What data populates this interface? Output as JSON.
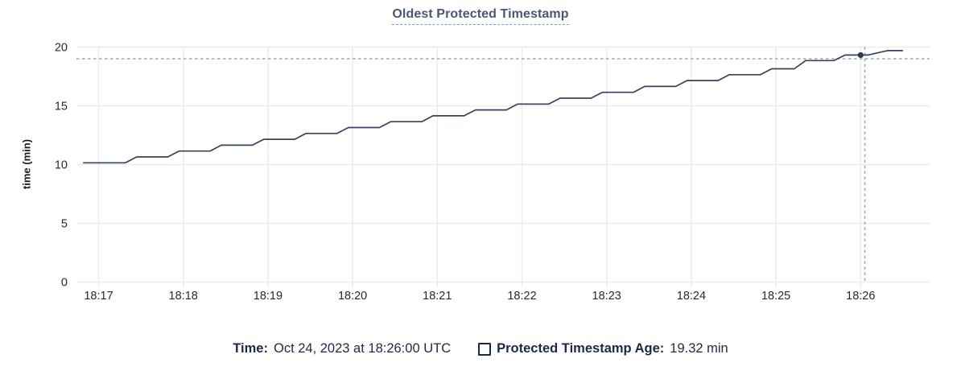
{
  "title": "Oldest Protected Timestamp",
  "y_axis_label": "time (min)",
  "footer": {
    "time_label": "Time:",
    "time_value": "Oct 24, 2023 at 18:26:00 UTC",
    "series_label": "Protected Timestamp Age:",
    "series_value": "19.32 min"
  },
  "colors": {
    "title": "#475872",
    "line": "#36425b",
    "hover_dot": "#2c3a52",
    "crosshair": "#9bb0b7",
    "gridline": "#ededee",
    "axis_text": "#242a35",
    "legend_text": "#1b2b45"
  },
  "chart_data": {
    "type": "line",
    "title": "Oldest Protected Timestamp",
    "xlabel": "",
    "ylabel": "time (min)",
    "ylim": [
      0,
      20
    ],
    "y_ticks": [
      0,
      5,
      10,
      15,
      20
    ],
    "grid": true,
    "legend_position": "bottom",
    "x_note": "x values are seconds since 18:17:00",
    "x_ticks": [
      {
        "offset_s": 0,
        "label": "18:17"
      },
      {
        "offset_s": 60,
        "label": "18:18"
      },
      {
        "offset_s": 120,
        "label": "18:19"
      },
      {
        "offset_s": 180,
        "label": "18:20"
      },
      {
        "offset_s": 240,
        "label": "18:21"
      },
      {
        "offset_s": 300,
        "label": "18:22"
      },
      {
        "offset_s": 360,
        "label": "18:23"
      },
      {
        "offset_s": 420,
        "label": "18:24"
      },
      {
        "offset_s": 480,
        "label": "18:25"
      },
      {
        "offset_s": 540,
        "label": "18:26"
      }
    ],
    "series": [
      {
        "name": "Protected Timestamp Age",
        "unit": "min",
        "points": [
          [
            -11,
            10.15
          ],
          [
            19,
            10.15
          ],
          [
            27,
            10.65
          ],
          [
            49,
            10.65
          ],
          [
            57,
            11.15
          ],
          [
            79,
            11.15
          ],
          [
            87,
            11.65
          ],
          [
            109,
            11.65
          ],
          [
            117,
            12.15
          ],
          [
            139,
            12.15
          ],
          [
            147,
            12.65
          ],
          [
            169,
            12.65
          ],
          [
            177,
            13.15
          ],
          [
            199,
            13.15
          ],
          [
            207,
            13.65
          ],
          [
            229,
            13.65
          ],
          [
            237,
            14.15
          ],
          [
            259,
            14.15
          ],
          [
            267,
            14.65
          ],
          [
            289,
            14.65
          ],
          [
            297,
            15.15
          ],
          [
            319,
            15.15
          ],
          [
            327,
            15.65
          ],
          [
            349,
            15.65
          ],
          [
            357,
            16.15
          ],
          [
            379,
            16.15
          ],
          [
            387,
            16.65
          ],
          [
            409,
            16.65
          ],
          [
            417,
            17.15
          ],
          [
            439,
            17.15
          ],
          [
            447,
            17.65
          ],
          [
            469,
            17.65
          ],
          [
            477,
            18.15
          ],
          [
            493,
            18.15
          ],
          [
            501,
            18.85
          ],
          [
            521,
            18.85
          ],
          [
            529,
            19.32
          ],
          [
            545,
            19.32
          ],
          [
            559,
            19.7
          ],
          [
            570,
            19.7
          ]
        ]
      }
    ],
    "hover": {
      "point_time": "18:26:00",
      "point_time_offset_s": 540,
      "point_value_min": 19.32,
      "crosshair_time_offset_s": 543,
      "crosshair_value_min": 19.0
    }
  }
}
